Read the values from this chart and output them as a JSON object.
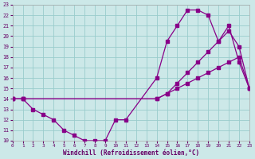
{
  "xlabel": "Windchill (Refroidissement éolien,°C)",
  "bg_color": "#cce8e8",
  "line_color": "#880088",
  "grid_color": "#99cccc",
  "xlim": [
    0,
    23
  ],
  "ylim": [
    10,
    23
  ],
  "xticks": [
    0,
    1,
    2,
    3,
    4,
    5,
    6,
    7,
    8,
    9,
    10,
    11,
    12,
    13,
    14,
    15,
    16,
    17,
    18,
    19,
    20,
    21,
    22,
    23
  ],
  "yticks": [
    10,
    11,
    12,
    13,
    14,
    15,
    16,
    17,
    18,
    19,
    20,
    21,
    22,
    23
  ],
  "line1_x": [
    0,
    1,
    2,
    3,
    4,
    5,
    6,
    7,
    8,
    9,
    10,
    11,
    14,
    15,
    16,
    17,
    18,
    19,
    20,
    21,
    22,
    23
  ],
  "line1_y": [
    14,
    14,
    13,
    12.5,
    12,
    11,
    10.5,
    10,
    10,
    10,
    12,
    12,
    16,
    19.5,
    21,
    22.5,
    22.5,
    22,
    19.5,
    21,
    17.5,
    15
  ],
  "line2_x": [
    0,
    1,
    14,
    15,
    16,
    17,
    18,
    19,
    20,
    21,
    22,
    23
  ],
  "line2_y": [
    14,
    14,
    14,
    14.5,
    15.5,
    16.5,
    17.5,
    18.5,
    19.5,
    20.5,
    19,
    15
  ],
  "line3_x": [
    0,
    1,
    14,
    15,
    16,
    17,
    18,
    19,
    20,
    21,
    22,
    23
  ],
  "line3_y": [
    14,
    14,
    14,
    14.5,
    15,
    15.5,
    16,
    16.5,
    17,
    17.5,
    18,
    15
  ]
}
